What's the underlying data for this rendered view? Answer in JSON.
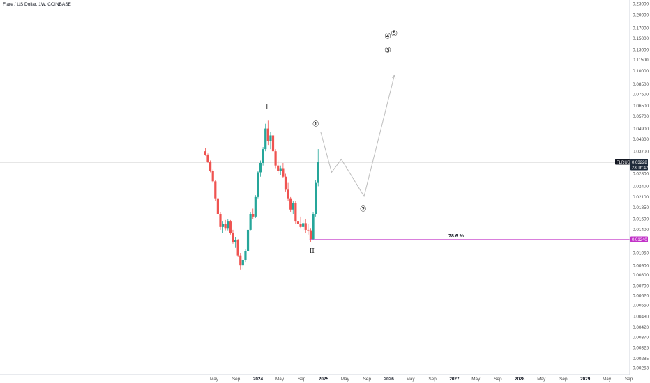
{
  "header": {
    "title": "Flare / US Dollar, 1W, COINBASE"
  },
  "price_scale": {
    "ticks": [
      "0.23000",
      "0.20000",
      "0.17000",
      "0.15000",
      "0.13000",
      "0.11500",
      "0.10000",
      "0.08500",
      "0.07500",
      "0.06500",
      "0.05700",
      "0.04900",
      "0.04300",
      "0.03700",
      "0.02800",
      "0.02400",
      "0.02100",
      "0.01850",
      "0.01600",
      "0.01400",
      "0.01050",
      "0.00900",
      "0.00800",
      "0.00700",
      "0.00620",
      "0.00550",
      "0.00480",
      "0.00420",
      "0.00370",
      "0.00325",
      "0.00285",
      "0.00253"
    ],
    "symbol_tag": "FLRUSD",
    "last_price": "0.03228",
    "countdown": "23:16:42",
    "fib_price": "0.01240",
    "colors": {
      "symbol_tag": "#131722",
      "price_tag": "#1e2a3a",
      "fib_tag": "#c233c8"
    }
  },
  "time_axis": {
    "labels": [
      {
        "text": "May",
        "bold": false
      },
      {
        "text": "Sep",
        "bold": false
      },
      {
        "text": "2024",
        "bold": true
      },
      {
        "text": "May",
        "bold": false
      },
      {
        "text": "Sep",
        "bold": false
      },
      {
        "text": "2025",
        "bold": true
      },
      {
        "text": "May",
        "bold": false
      },
      {
        "text": "Sep",
        "bold": false
      },
      {
        "text": "2026",
        "bold": true
      },
      {
        "text": "May",
        "bold": false
      },
      {
        "text": "Sep",
        "bold": false
      },
      {
        "text": "2027",
        "bold": true
      },
      {
        "text": "May",
        "bold": false
      },
      {
        "text": "Sep",
        "bold": false
      },
      {
        "text": "2028",
        "bold": true
      },
      {
        "text": "May",
        "bold": false
      },
      {
        "text": "Sep",
        "bold": false
      },
      {
        "text": "2029",
        "bold": true
      },
      {
        "text": "May",
        "bold": false
      },
      {
        "text": "Sep",
        "bold": false
      }
    ]
  },
  "annotations": {
    "fib_label": "78.6 %",
    "roman_top": "I",
    "roman_bottom": "II",
    "wave_1": "①",
    "wave_2": "②",
    "wave_3": "③",
    "wave_4": "④",
    "wave_5": "⑤"
  },
  "chart_data": {
    "type": "candlestick",
    "symbol": "FLRUSD",
    "interval": "1W",
    "y_scale": "log",
    "ylim": [
      0.00253,
      0.23
    ],
    "x_range": [
      "2023-03",
      "2029-10"
    ],
    "colors": {
      "up": "#26a69a",
      "down": "#ef5350",
      "fib_line": "#c233c8",
      "projection": "#bdbdbd",
      "price_line": "#9e9e9e"
    },
    "candles": [
      {
        "t": "2023-03-13",
        "o": 0.037,
        "h": 0.0385,
        "l": 0.035,
        "c": 0.0355
      },
      {
        "t": "2023-03-27",
        "o": 0.0355,
        "h": 0.036,
        "l": 0.032,
        "c": 0.0325
      },
      {
        "t": "2023-04-10",
        "o": 0.0325,
        "h": 0.033,
        "l": 0.0285,
        "c": 0.029
      },
      {
        "t": "2023-04-24",
        "o": 0.029,
        "h": 0.0295,
        "l": 0.025,
        "c": 0.0255
      },
      {
        "t": "2023-05-08",
        "o": 0.0255,
        "h": 0.026,
        "l": 0.02,
        "c": 0.0205
      },
      {
        "t": "2023-05-22",
        "o": 0.0205,
        "h": 0.021,
        "l": 0.0165,
        "c": 0.017
      },
      {
        "t": "2023-06-05",
        "o": 0.017,
        "h": 0.0175,
        "l": 0.014,
        "c": 0.0145
      },
      {
        "t": "2023-06-19",
        "o": 0.0145,
        "h": 0.0155,
        "l": 0.0135,
        "c": 0.015
      },
      {
        "t": "2023-07-03",
        "o": 0.015,
        "h": 0.0158,
        "l": 0.0138,
        "c": 0.0142
      },
      {
        "t": "2023-07-17",
        "o": 0.0142,
        "h": 0.016,
        "l": 0.0138,
        "c": 0.0155
      },
      {
        "t": "2023-07-31",
        "o": 0.0155,
        "h": 0.0158,
        "l": 0.0132,
        "c": 0.0135
      },
      {
        "t": "2023-08-14",
        "o": 0.0135,
        "h": 0.014,
        "l": 0.0118,
        "c": 0.012
      },
      {
        "t": "2023-08-28",
        "o": 0.012,
        "h": 0.0128,
        "l": 0.0112,
        "c": 0.0124
      },
      {
        "t": "2023-09-11",
        "o": 0.0124,
        "h": 0.0125,
        "l": 0.01,
        "c": 0.0102
      },
      {
        "t": "2023-09-25",
        "o": 0.0102,
        "h": 0.0105,
        "l": 0.0085,
        "c": 0.009
      },
      {
        "t": "2023-10-09",
        "o": 0.009,
        "h": 0.0098,
        "l": 0.0086,
        "c": 0.0096
      },
      {
        "t": "2023-10-23",
        "o": 0.0096,
        "h": 0.011,
        "l": 0.0094,
        "c": 0.0108
      },
      {
        "t": "2023-11-06",
        "o": 0.0108,
        "h": 0.0142,
        "l": 0.0106,
        "c": 0.014
      },
      {
        "t": "2023-11-20",
        "o": 0.014,
        "h": 0.0175,
        "l": 0.0138,
        "c": 0.017
      },
      {
        "t": "2023-12-04",
        "o": 0.017,
        "h": 0.0182,
        "l": 0.016,
        "c": 0.0165
      },
      {
        "t": "2023-12-18",
        "o": 0.0165,
        "h": 0.0215,
        "l": 0.0162,
        "c": 0.021
      },
      {
        "t": "2024-01-01",
        "o": 0.021,
        "h": 0.029,
        "l": 0.0205,
        "c": 0.0285
      },
      {
        "t": "2024-01-15",
        "o": 0.0285,
        "h": 0.033,
        "l": 0.027,
        "c": 0.032
      },
      {
        "t": "2024-01-29",
        "o": 0.032,
        "h": 0.039,
        "l": 0.031,
        "c": 0.038
      },
      {
        "t": "2024-02-12",
        "o": 0.038,
        "h": 0.052,
        "l": 0.037,
        "c": 0.049
      },
      {
        "t": "2024-02-26",
        "o": 0.049,
        "h": 0.054,
        "l": 0.04,
        "c": 0.042
      },
      {
        "t": "2024-03-11",
        "o": 0.042,
        "h": 0.047,
        "l": 0.038,
        "c": 0.045
      },
      {
        "t": "2024-03-25",
        "o": 0.045,
        "h": 0.05,
        "l": 0.036,
        "c": 0.037
      },
      {
        "t": "2024-04-08",
        "o": 0.037,
        "h": 0.038,
        "l": 0.03,
        "c": 0.031
      },
      {
        "t": "2024-04-22",
        "o": 0.031,
        "h": 0.033,
        "l": 0.028,
        "c": 0.029
      },
      {
        "t": "2024-05-06",
        "o": 0.029,
        "h": 0.031,
        "l": 0.0275,
        "c": 0.03
      },
      {
        "t": "2024-05-20",
        "o": 0.03,
        "h": 0.032,
        "l": 0.0265,
        "c": 0.027
      },
      {
        "t": "2024-06-03",
        "o": 0.027,
        "h": 0.028,
        "l": 0.0225,
        "c": 0.023
      },
      {
        "t": "2024-06-17",
        "o": 0.023,
        "h": 0.025,
        "l": 0.02,
        "c": 0.0205
      },
      {
        "t": "2024-07-01",
        "o": 0.0205,
        "h": 0.021,
        "l": 0.0175,
        "c": 0.018
      },
      {
        "t": "2024-07-15",
        "o": 0.018,
        "h": 0.02,
        "l": 0.017,
        "c": 0.0195
      },
      {
        "t": "2024-07-29",
        "o": 0.0195,
        "h": 0.02,
        "l": 0.015,
        "c": 0.0155
      },
      {
        "t": "2024-08-12",
        "o": 0.0155,
        "h": 0.016,
        "l": 0.014,
        "c": 0.015
      },
      {
        "t": "2024-08-26",
        "o": 0.015,
        "h": 0.0165,
        "l": 0.0142,
        "c": 0.0145
      },
      {
        "t": "2024-09-09",
        "o": 0.0145,
        "h": 0.0158,
        "l": 0.0138,
        "c": 0.0152
      },
      {
        "t": "2024-09-23",
        "o": 0.0152,
        "h": 0.016,
        "l": 0.0135,
        "c": 0.014
      },
      {
        "t": "2024-10-07",
        "o": 0.014,
        "h": 0.015,
        "l": 0.0132,
        "c": 0.0138
      },
      {
        "t": "2024-10-21",
        "o": 0.0138,
        "h": 0.0142,
        "l": 0.012,
        "c": 0.0125
      },
      {
        "t": "2024-11-04",
        "o": 0.0125,
        "h": 0.0175,
        "l": 0.0124,
        "c": 0.017
      },
      {
        "t": "2024-11-18",
        "o": 0.017,
        "h": 0.026,
        "l": 0.0165,
        "c": 0.025
      },
      {
        "t": "2024-12-02",
        "o": 0.025,
        "h": 0.038,
        "l": 0.024,
        "c": 0.0323
      }
    ],
    "last_price": 0.03228,
    "fib_level": {
      "label": "78.6 %",
      "price": 0.0124,
      "from": "2024-10-14"
    },
    "projection_path": [
      {
        "t": "2024-12-16",
        "p": 0.047
      },
      {
        "t": "2025-02-15",
        "p": 0.0285
      },
      {
        "t": "2025-04-10",
        "p": 0.0335
      },
      {
        "t": "2025-08-15",
        "p": 0.0212
      },
      {
        "t": "2026-02-01",
        "p": 0.095
      }
    ],
    "wave_labels": [
      {
        "text": "I",
        "t": "2024-02-20",
        "p": 0.064
      },
      {
        "text": "II",
        "t": "2024-10-28",
        "p": 0.0108
      },
      {
        "text": "1",
        "t": "2024-11-18",
        "p": 0.052
      },
      {
        "text": "2",
        "t": "2025-08-10",
        "p": 0.0182
      },
      {
        "text": "3",
        "t": "2025-12-25",
        "p": 0.13
      },
      {
        "text": "4",
        "t": "2025-12-25",
        "p": 0.154
      },
      {
        "text": "5",
        "t": "2026-01-30",
        "p": 0.16
      }
    ]
  }
}
